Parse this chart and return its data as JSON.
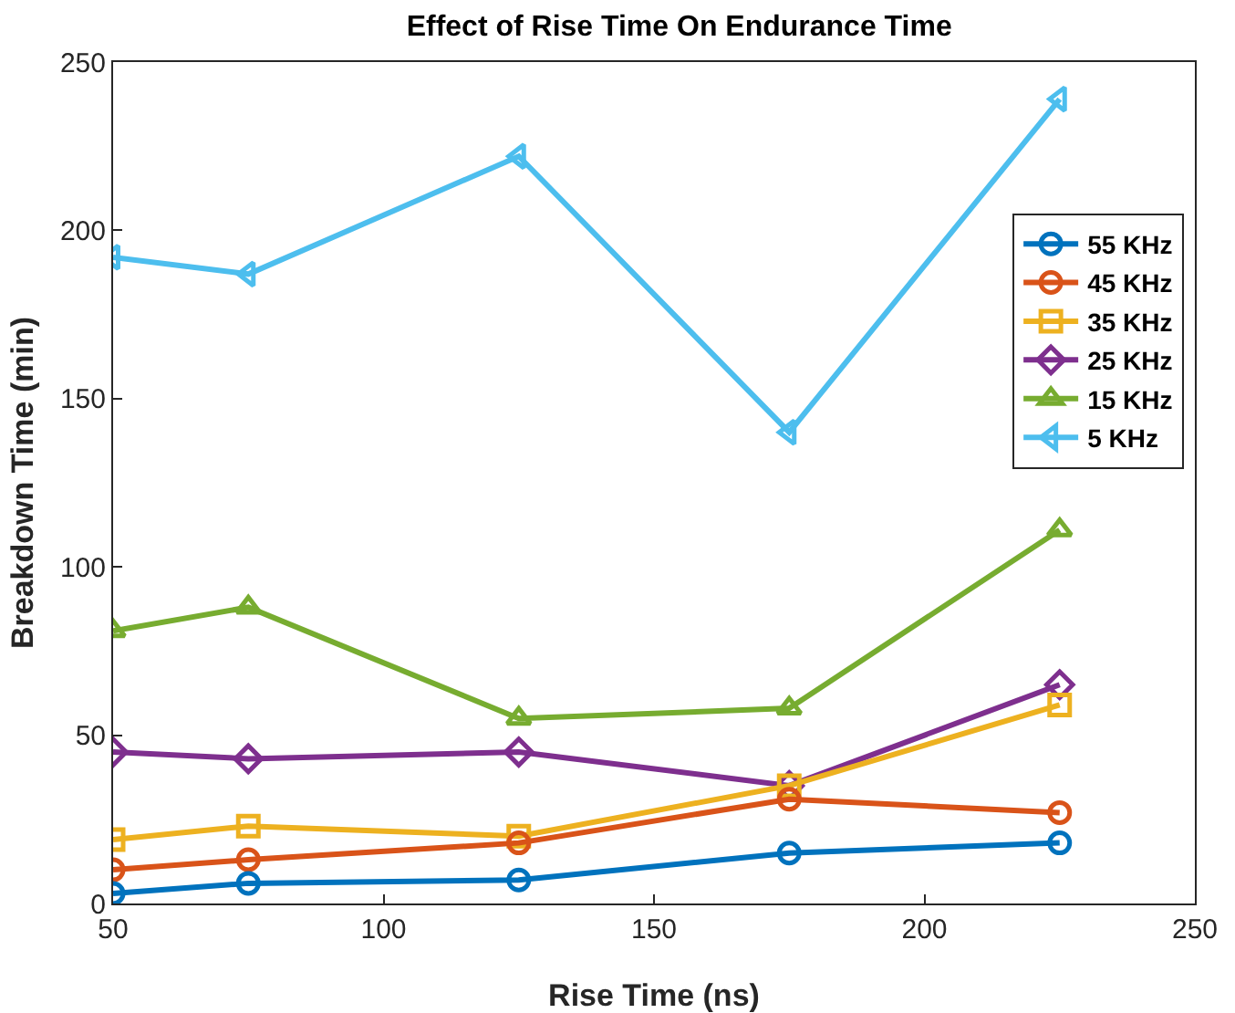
{
  "chart_data": {
    "type": "line",
    "title": "Effect of Rise Time On Endurance Time",
    "xlabel": "Rise Time (ns)",
    "ylabel": "Breakdown Time (min)",
    "x": [
      50,
      75,
      125,
      175,
      225
    ],
    "series": [
      {
        "name": "55 KHz",
        "color": "#0072bd",
        "marker": "circle",
        "values": [
          3,
          6,
          7,
          15,
          18
        ]
      },
      {
        "name": "45 KHz",
        "color": "#d95319",
        "marker": "circle",
        "values": [
          10,
          13,
          18,
          31,
          27
        ]
      },
      {
        "name": "35 KHz",
        "color": "#edb120",
        "marker": "square",
        "values": [
          19,
          23,
          20,
          35,
          59
        ]
      },
      {
        "name": "25 KHz",
        "color": "#7e2f8e",
        "marker": "diamond",
        "values": [
          45,
          43,
          45,
          35,
          65
        ]
      },
      {
        "name": "15 KHz",
        "color": "#77ac30",
        "marker": "triangle",
        "values": [
          81,
          88,
          55,
          58,
          111
        ]
      },
      {
        "name": "5 KHz",
        "color": "#4dbeee",
        "marker": "triangle-left",
        "values": [
          192,
          187,
          222,
          140,
          239
        ]
      }
    ],
    "xlim": [
      50,
      250
    ],
    "xticks": [
      50,
      100,
      150,
      200,
      250
    ],
    "ylim": [
      0,
      250
    ],
    "yticks": [
      0,
      50,
      100,
      150,
      200,
      250
    ],
    "grid": false,
    "legend": "right"
  }
}
